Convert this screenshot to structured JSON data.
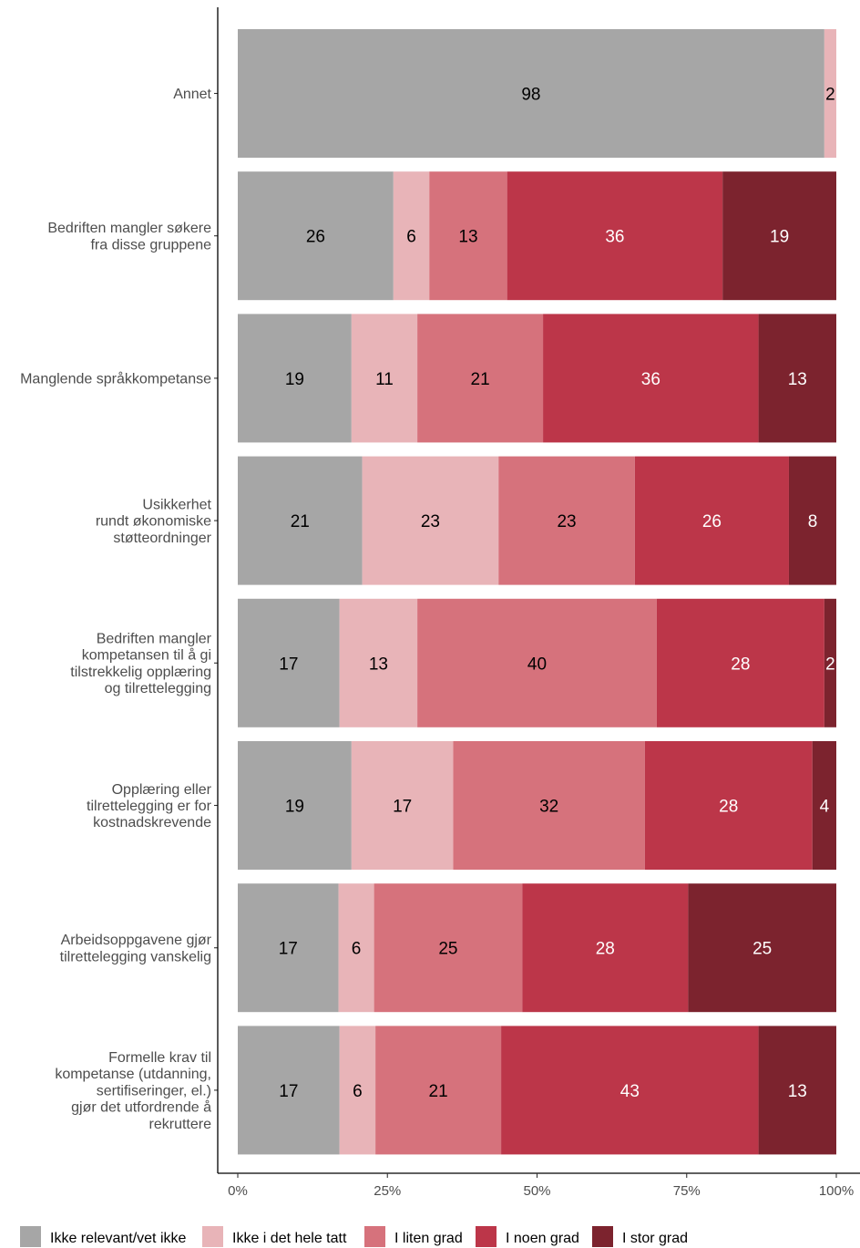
{
  "chart_data": {
    "type": "bar",
    "orientation": "horizontal",
    "stacked": true,
    "categories": [
      "Annet",
      "Bedriften mangler søkere\nfra disse gruppene",
      "Manglende språkkompetanse",
      "Usikkerhet\nrundt økonomiske\nstøtteordninger",
      "Bedriften mangler\nkompetansen til å gi\ntilstrekkelig opplæring\nog tilrettelegging",
      "Opplæring eller\ntilrettelegging er for\nkostnadskrevende",
      "Arbeidsoppgavene gjør\ntilrettelegging vanskelig",
      "Formelle krav til\nkompetanse (utdanning,\nsertifiseringer, el.)\ngjør det utfordrende å\nrekruttere"
    ],
    "series": [
      {
        "name": "Ikke relevant/vet ikke",
        "color": "#a6a6a6",
        "label_color": "#000000",
        "values": [
          98,
          26,
          19,
          21,
          17,
          19,
          17,
          17
        ]
      },
      {
        "name": "Ikke i det hele tatt",
        "color": "#e8b4b8",
        "label_color": "#000000",
        "values": [
          2,
          6,
          11,
          23,
          13,
          17,
          6,
          6
        ]
      },
      {
        "name": "I liten grad",
        "color": "#d6727c",
        "label_color": "#000000",
        "values": [
          0,
          13,
          21,
          23,
          40,
          32,
          25,
          21
        ]
      },
      {
        "name": "I noen grad",
        "color": "#bc3649",
        "label_color": "#ffffff",
        "values": [
          0,
          36,
          36,
          26,
          28,
          28,
          28,
          43
        ]
      },
      {
        "name": "I stor grad",
        "color": "#7c232e",
        "label_color": "#ffffff",
        "values": [
          0,
          19,
          13,
          8,
          2,
          4,
          25,
          13
        ]
      }
    ],
    "xlim": [
      0,
      100
    ],
    "x_ticks": [
      "0%",
      "25%",
      "50%",
      "75%",
      "100%"
    ],
    "x_tick_values": [
      0,
      25,
      50,
      75,
      100
    ],
    "xlabel": "",
    "ylabel": "",
    "grid": false,
    "legend_position": "bottom"
  }
}
